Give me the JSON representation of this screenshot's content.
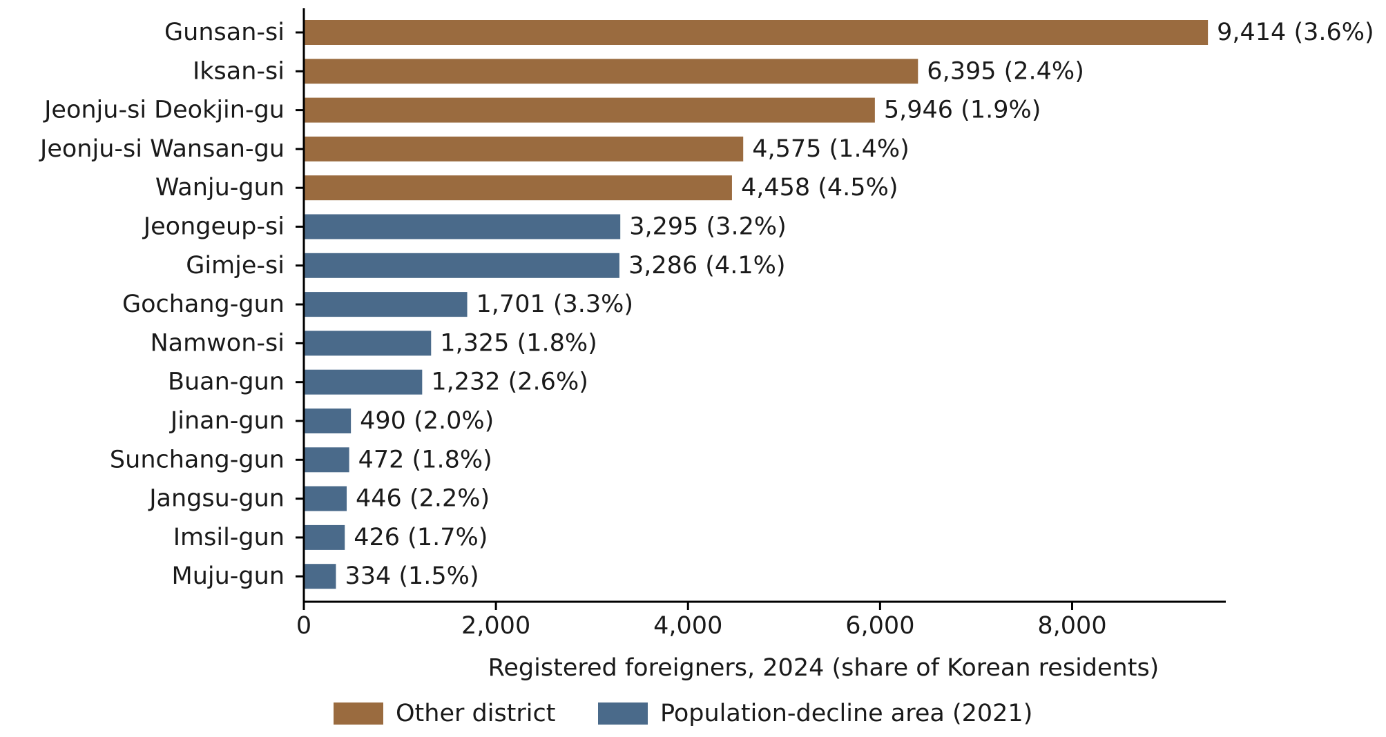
{
  "colors": {
    "other_district": "#9A6B3F",
    "population_decline": "#4A6A8A"
  },
  "legend": {
    "items": [
      {
        "label": "Other district",
        "color_key": "other_district"
      },
      {
        "label": "Population-decline area (2021)",
        "color_key": "population_decline"
      }
    ]
  },
  "chart_data": {
    "type": "bar",
    "orientation": "horizontal",
    "xlabel": "Registered foreigners, 2024 (share of Korean residents)",
    "ylabel": "",
    "xlim": [
      0,
      9600
    ],
    "xticks": [
      0,
      2000,
      4000,
      6000,
      8000
    ],
    "xtick_labels": [
      "0",
      "2,000",
      "4,000",
      "6,000",
      "8,000"
    ],
    "grid": false,
    "legend_position": "bottom",
    "categories": [
      "Gunsan-si",
      "Iksan-si",
      "Jeonju-si Deokjin-gu",
      "Jeonju-si Wansan-gu",
      "Wanju-gun",
      "Jeongeup-si",
      "Gimje-si",
      "Gochang-gun",
      "Namwon-si",
      "Buan-gun",
      "Jinan-gun",
      "Sunchang-gun",
      "Jangsu-gun",
      "Imsil-gun",
      "Muju-gun"
    ],
    "values": [
      9414,
      6395,
      5946,
      4575,
      4458,
      3295,
      3286,
      1701,
      1325,
      1232,
      490,
      472,
      446,
      426,
      334
    ],
    "shares": [
      "3.6%",
      "2.4%",
      "1.9%",
      "1.4%",
      "4.5%",
      "3.2%",
      "4.1%",
      "3.3%",
      "1.8%",
      "2.6%",
      "2.0%",
      "1.8%",
      "2.2%",
      "1.7%",
      "1.5%"
    ],
    "data_labels": [
      "9,414 (3.6%)",
      "6,395 (2.4%)",
      "5,946 (1.9%)",
      "4,575 (1.4%)",
      "4,458 (4.5%)",
      "3,295 (3.2%)",
      "3,286 (4.1%)",
      "1,701 (3.3%)",
      "1,325 (1.8%)",
      "1,232 (2.6%)",
      "490 (2.0%)",
      "472 (1.8%)",
      "446 (2.2%)",
      "426 (1.7%)",
      "334 (1.5%)"
    ],
    "groups": [
      "Other district",
      "Other district",
      "Other district",
      "Other district",
      "Other district",
      "Population-decline area (2021)",
      "Population-decline area (2021)",
      "Population-decline area (2021)",
      "Population-decline area (2021)",
      "Population-decline area (2021)",
      "Population-decline area (2021)",
      "Population-decline area (2021)",
      "Population-decline area (2021)",
      "Population-decline area (2021)",
      "Population-decline area (2021)"
    ]
  }
}
